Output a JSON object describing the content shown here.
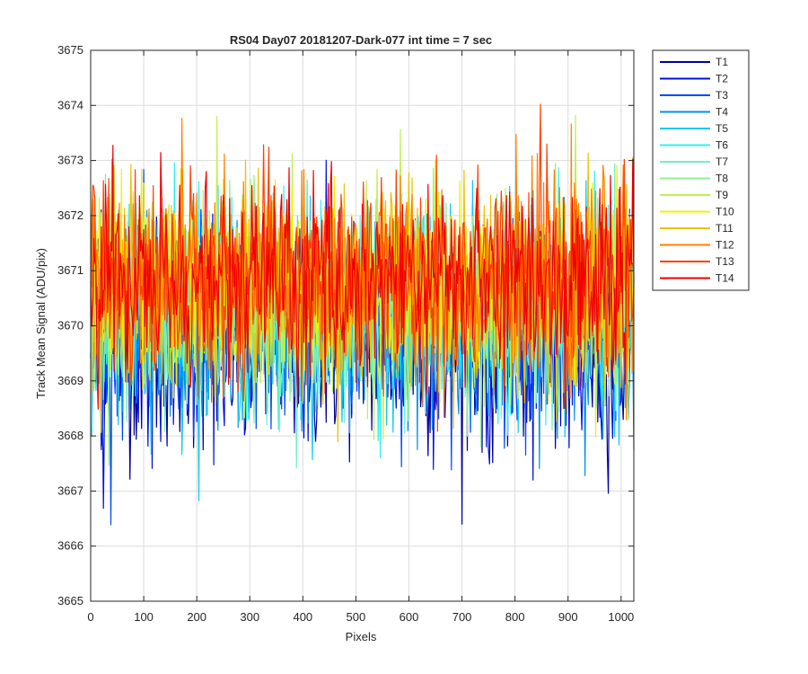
{
  "chart_data": {
    "type": "line",
    "title": "RS04 Day07 20181207-Dark-077 int time = 7 sec",
    "xlabel": "Pixels",
    "ylabel": "Track Mean Signal (ADU/pix)",
    "xlim": [
      0,
      1024
    ],
    "ylim": [
      3665,
      3675
    ],
    "xticks": [
      0,
      100,
      200,
      300,
      400,
      500,
      600,
      700,
      800,
      900,
      1000
    ],
    "yticks": [
      3665,
      3666,
      3667,
      3668,
      3669,
      3670,
      3671,
      3672,
      3673,
      3674,
      3675
    ],
    "grid": true,
    "legend_position": "outside-right",
    "series": [
      {
        "name": "T1",
        "color": "#0000a0",
        "mean": 3669.7,
        "std": 0.95
      },
      {
        "name": "T2",
        "color": "#0010d8",
        "mean": 3669.9,
        "std": 0.95
      },
      {
        "name": "T3",
        "color": "#0048ff",
        "mean": 3670.0,
        "std": 0.9
      },
      {
        "name": "T4",
        "color": "#0090f0",
        "mean": 3670.1,
        "std": 0.9
      },
      {
        "name": "T5",
        "color": "#10c8f0",
        "mean": 3670.2,
        "std": 0.9
      },
      {
        "name": "T6",
        "color": "#30f0f0",
        "mean": 3670.3,
        "std": 0.9
      },
      {
        "name": "T7",
        "color": "#70f0c8",
        "mean": 3670.4,
        "std": 0.9
      },
      {
        "name": "T8",
        "color": "#90f090",
        "mean": 3670.5,
        "std": 0.9
      },
      {
        "name": "T9",
        "color": "#c0f050",
        "mean": 3670.6,
        "std": 0.9
      },
      {
        "name": "T10",
        "color": "#f0f000",
        "mean": 3670.7,
        "std": 0.9
      },
      {
        "name": "T11",
        "color": "#f0c000",
        "mean": 3670.7,
        "std": 0.9
      },
      {
        "name": "T12",
        "color": "#ff8000",
        "mean": 3670.8,
        "std": 0.9
      },
      {
        "name": "T13",
        "color": "#ff4000",
        "mean": 3670.8,
        "std": 0.9
      },
      {
        "name": "T14",
        "color": "#f00000",
        "mean": 3670.8,
        "std": 0.9
      }
    ]
  }
}
